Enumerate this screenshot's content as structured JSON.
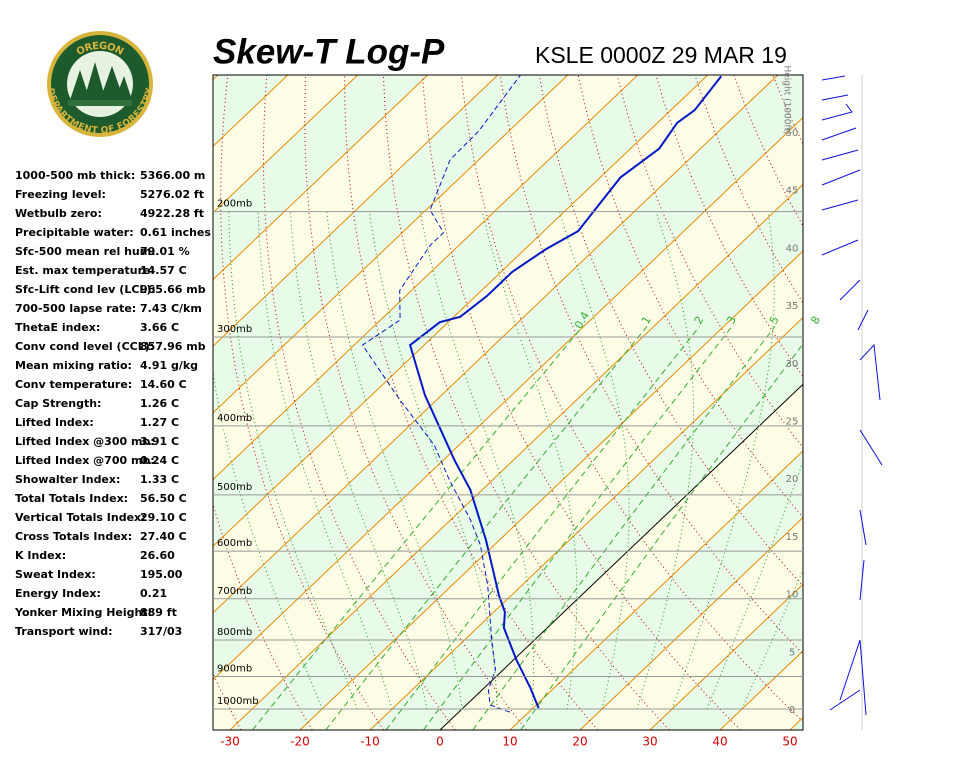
{
  "logo": {
    "top": "OREGON",
    "bottom": "DEPARTMENT OF FORESTRY"
  },
  "title": "Skew-T Log-P",
  "subtitle": "KSLE 0000Z 29 MAR 19",
  "stats": [
    [
      "1000-500 mb thick:",
      "5366.00 m"
    ],
    [
      "Freezing level:",
      "5276.02 ft"
    ],
    [
      "Wetbulb zero:",
      "4922.28 ft"
    ],
    [
      "Precipitable water:",
      "0.61 inches"
    ],
    [
      "Sfc-500 mean rel hum:",
      "79.01 %"
    ],
    [
      "Est. max temperature:",
      "14.57 C"
    ],
    [
      "Sfc-Lift cond lev (LCL):",
      "965.66 mb"
    ],
    [
      "700-500 lapse rate:",
      "7.43 C/km"
    ],
    [
      "ThetaE index:",
      "3.66 C"
    ],
    [
      "Conv cond level (CCL):",
      "857.96 mb"
    ],
    [
      "  Mean mixing ratio:",
      "4.91 g/kg"
    ],
    [
      "  Conv temperature:",
      "14.60 C"
    ],
    [
      "Cap Strength:",
      "1.26 C"
    ],
    [
      "Lifted Index:",
      "1.27 C"
    ],
    [
      "Lifted Index @300 mb:",
      "3.91 C"
    ],
    [
      "Lifted Index @700 mb:",
      "0.24 C"
    ],
    [
      "Showalter Index:",
      "1.33 C"
    ],
    [
      "Total Totals Index:",
      "56.50 C"
    ],
    [
      "  Vertical Totals Index:",
      "29.10 C"
    ],
    [
      "  Cross Totals Index:",
      "27.40 C"
    ],
    [
      "K Index:",
      "26.60"
    ],
    [
      "Sweat Index:",
      "195.00"
    ],
    [
      "Energy Index:",
      "0.21"
    ],
    [
      "Yonker Mixing Height:",
      "889 ft"
    ],
    [
      "Transport wind:",
      "317/03"
    ]
  ],
  "skewt": {
    "xticks": [
      -30,
      -20,
      -10,
      0,
      10,
      20,
      30,
      40,
      50
    ],
    "pressure_levels": [
      {
        "value": 1000,
        "label": "1000mb"
      },
      {
        "value": 900,
        "label": "900mb"
      },
      {
        "value": 800,
        "label": "800mb"
      },
      {
        "value": 700,
        "label": "700mb"
      },
      {
        "value": 600,
        "label": "600mb"
      },
      {
        "value": 500,
        "label": "500mb"
      },
      {
        "value": 400,
        "label": "400mb"
      },
      {
        "value": 300,
        "label": "300mb"
      },
      {
        "value": 200,
        "label": "200mb"
      }
    ],
    "height_label": "Height (1000ft)",
    "height_ticks": [
      0,
      5,
      10,
      15,
      20,
      25,
      30,
      35,
      40,
      45,
      50
    ],
    "mixing_ratios": [
      0.4,
      1,
      2,
      3,
      5,
      8
    ],
    "temperature": {
      "color": "#0018c8",
      "pressure": [
        997,
        934,
        853,
        769,
        731,
        692,
        579,
        492,
        447,
        362,
        308,
        286,
        281,
        263,
        243,
        226,
        213,
        179,
        163,
        150,
        144,
        129
      ],
      "values": [
        10.8,
        6.6,
        0.4,
        -6.2,
        -8.4,
        -11.8,
        -21.9,
        -31.7,
        -38.4,
        -52.4,
        -62.0,
        -61.2,
        -59.1,
        -58.4,
        -58.4,
        -57.0,
        -55.1,
        -57.1,
        -55.9,
        -57.2,
        -56.6,
        -57.9
      ]
    },
    "dewpoint": {
      "color": "#0018c8",
      "pressure": [
        1010,
        987,
        940,
        881,
        800,
        670,
        588,
        542,
        477,
        426,
        368,
        308,
        284,
        258,
        223,
        214,
        199,
        169,
        154,
        128
      ],
      "values": [
        7.3,
        3.4,
        0.9,
        -1.1,
        -6.1,
        -14.9,
        -22.0,
        -27.2,
        -36.1,
        -43.5,
        -55.2,
        -68.8,
        -67.2,
        -71.7,
        -74.1,
        -74.1,
        -79.4,
        -84.1,
        -84.3,
        -86.8
      ]
    }
  }
}
